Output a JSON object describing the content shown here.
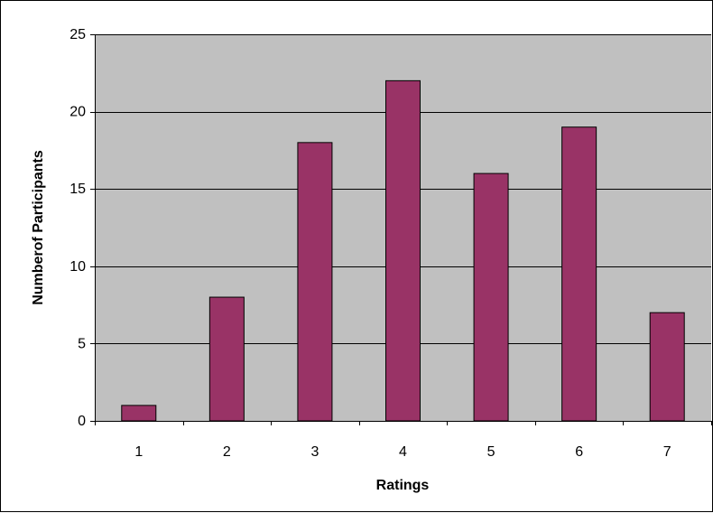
{
  "chart_data": {
    "type": "bar",
    "title": "",
    "xlabel": "Ratings",
    "ylabel": "Numberof Participants",
    "categories": [
      "1",
      "2",
      "3",
      "4",
      "5",
      "6",
      "7"
    ],
    "values": [
      1,
      8,
      18,
      22,
      16,
      19,
      7
    ],
    "ylim": [
      0,
      25
    ],
    "yticks": [
      0,
      5,
      10,
      15,
      20,
      25
    ],
    "grid": "horizontal",
    "legend": "none",
    "colors": {
      "bar": "#993366",
      "bar_outline": "#000000",
      "plot_background": "#c0c0c0",
      "gridline": "#000000",
      "chart_background": "#ffffff"
    }
  }
}
